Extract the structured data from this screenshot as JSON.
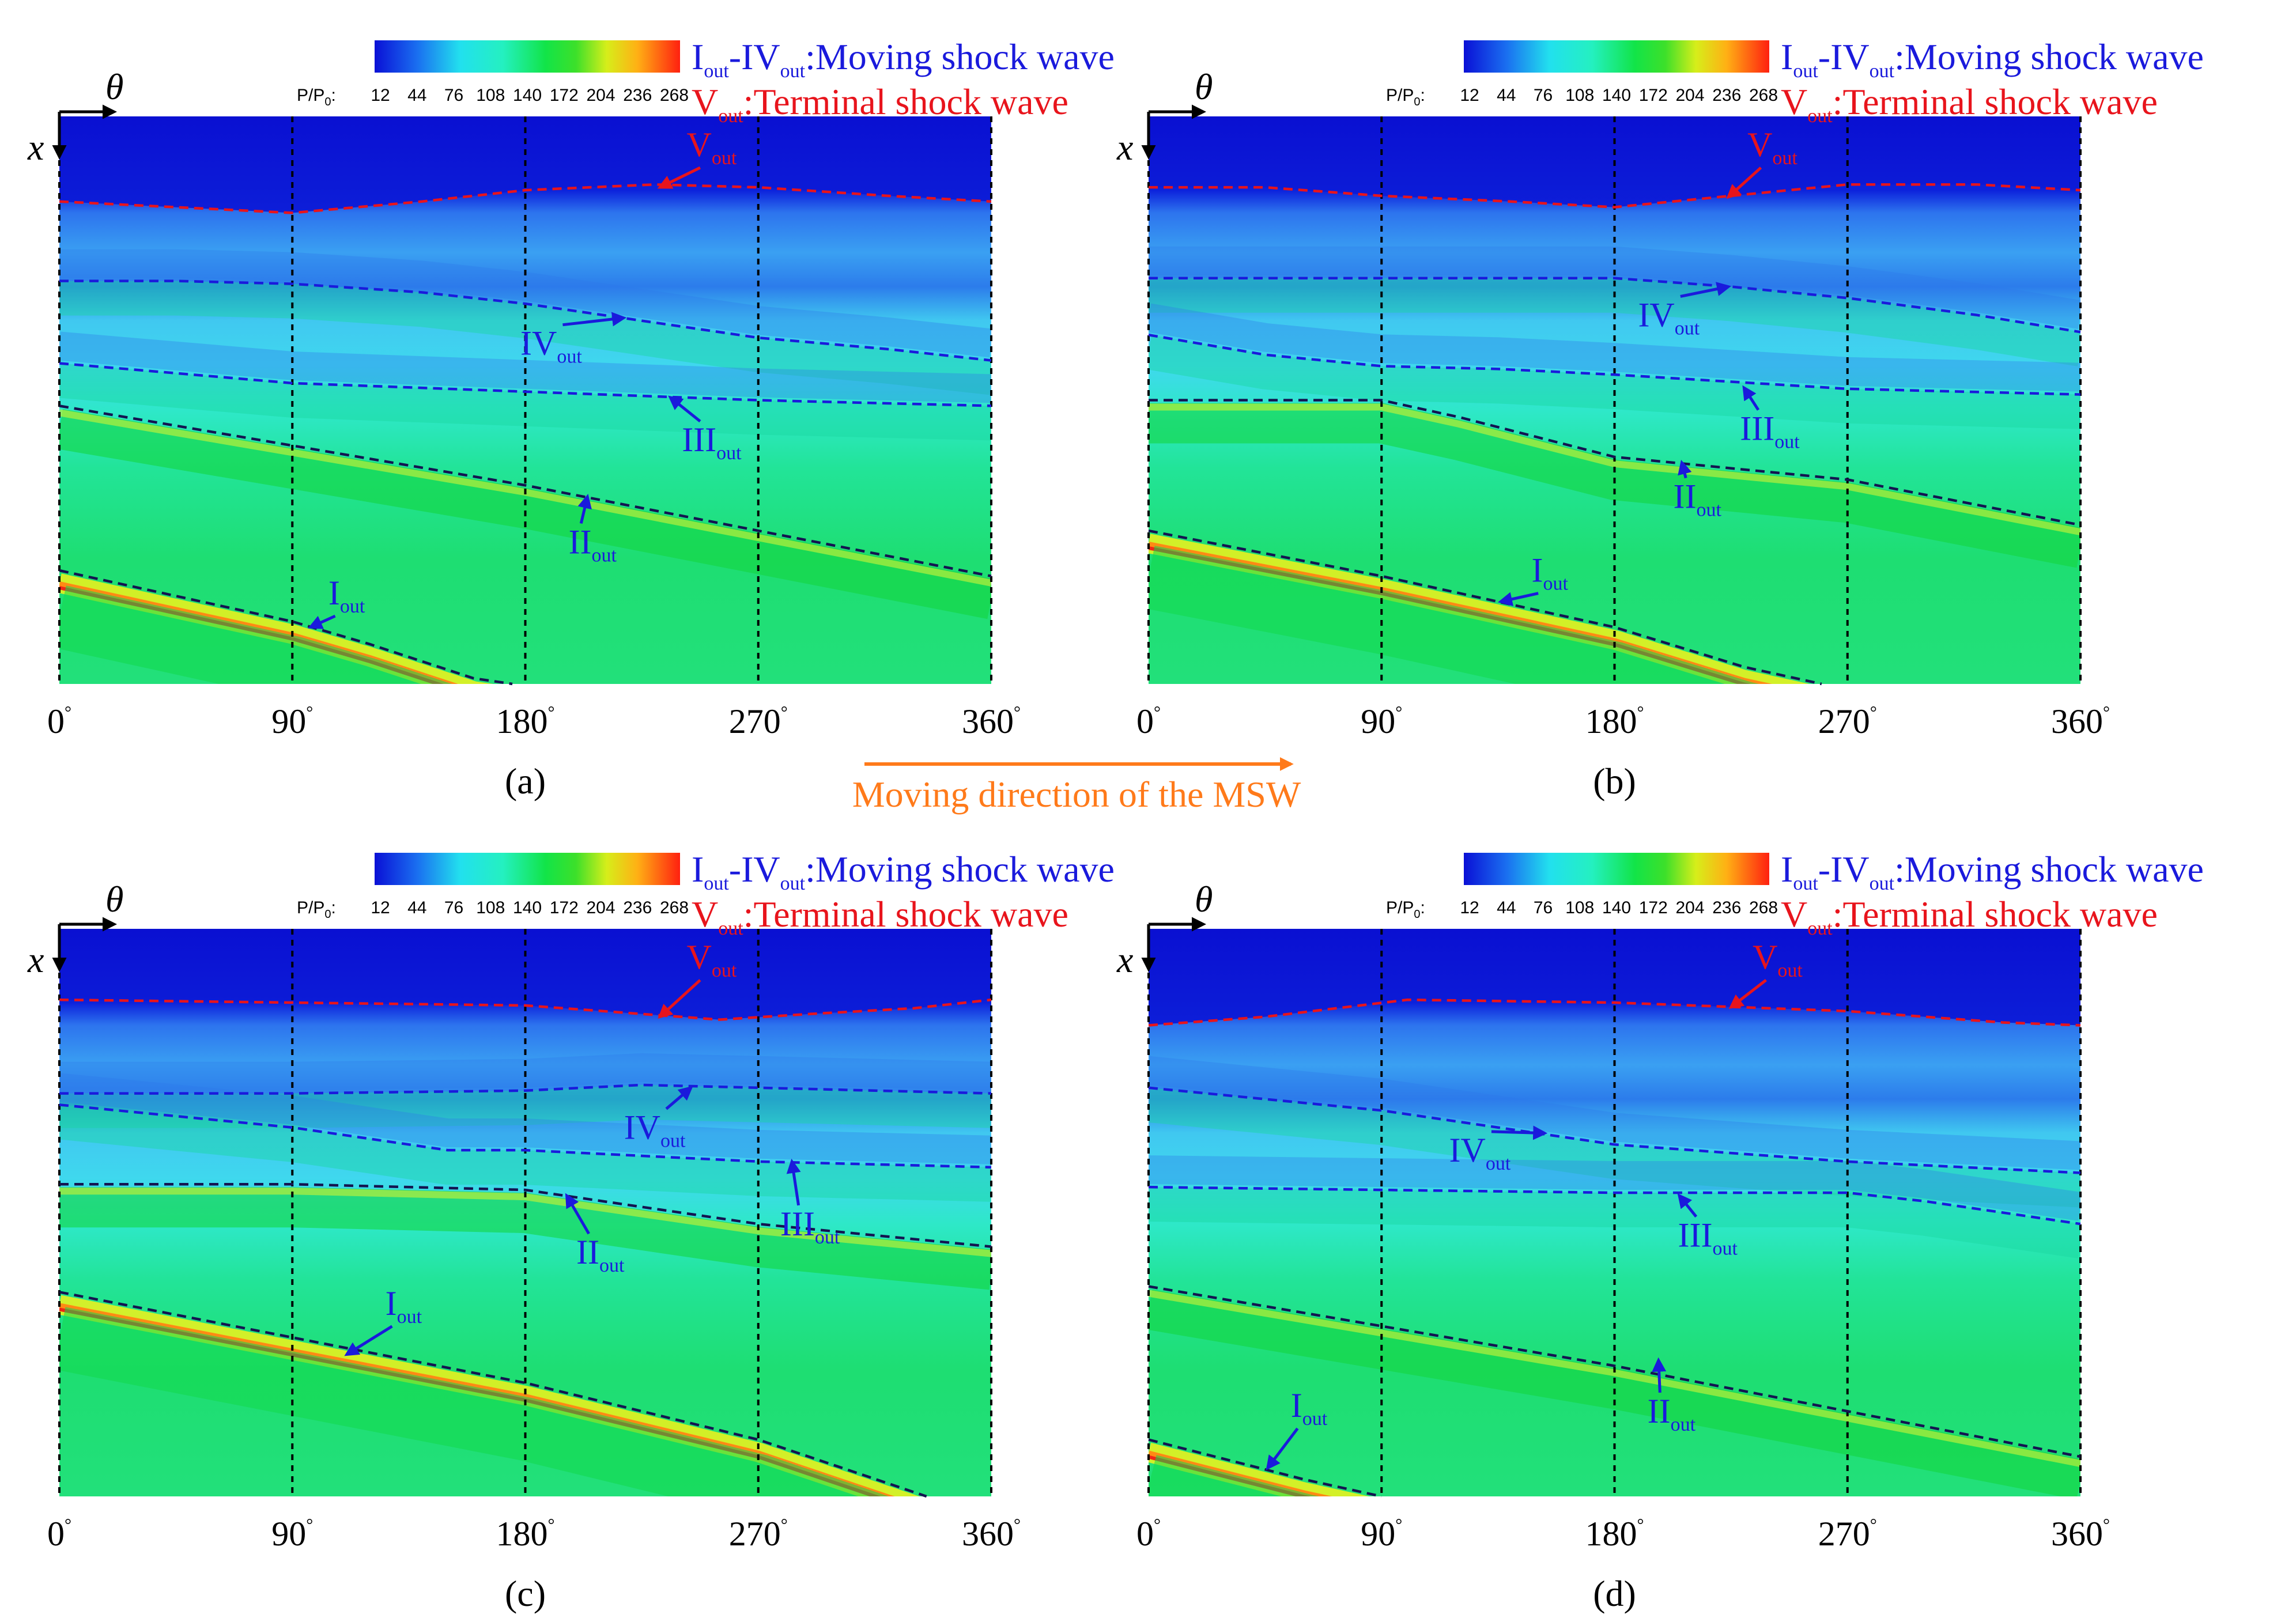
{
  "figure": {
    "arrow_label": "Moving direction of the MSW",
    "colorbar": {
      "label": "P/P",
      "label_subscript": "0",
      "label_suffix": ":",
      "ticks": [
        "12",
        "44",
        "76",
        "108",
        "140",
        "172",
        "204",
        "236",
        "268"
      ],
      "range": [
        12,
        268
      ]
    },
    "legend": {
      "moving": {
        "roman_a": "I",
        "sub": "out",
        "dash": "-",
        "roman_b": "IV",
        "text": ":Moving shock wave"
      },
      "terminal": {
        "roman": "V",
        "sub": "out",
        "text": ":Terminal shock wave"
      }
    },
    "axis": {
      "theta_label": "θ",
      "x_label": "x"
    },
    "colors": {
      "moving": "#1a1adc",
      "terminal": "#e8141c",
      "arrow": "#ff7a1a",
      "grid": "#000000"
    }
  },
  "chart_data": [
    {
      "type": "heatmap",
      "panel_label": "(a)",
      "xlabel": "θ",
      "ylabel": "x",
      "xlim": [
        0,
        360
      ],
      "ylim": [
        0,
        1
      ],
      "x_ticks": [
        0,
        90,
        180,
        270,
        360
      ],
      "tick_suffix": "°",
      "grid_theta": [
        90,
        180,
        270
      ],
      "shocks": [
        {
          "name": "V",
          "sub": "out",
          "kind": "terminal",
          "theta": [
            0,
            45,
            90,
            140,
            180,
            230,
            270,
            320,
            360
          ],
          "x": [
            0.15,
            0.16,
            0.17,
            0.15,
            0.13,
            0.12,
            0.125,
            0.14,
            0.15
          ]
        },
        {
          "name": "IV",
          "sub": "out",
          "kind": "moving",
          "theta": [
            0,
            45,
            90,
            140,
            180,
            225,
            270,
            320,
            360
          ],
          "x": [
            0.29,
            0.29,
            0.295,
            0.31,
            0.33,
            0.36,
            0.39,
            0.41,
            0.43
          ]
        },
        {
          "name": "III",
          "sub": "out",
          "kind": "moving",
          "theta": [
            0,
            90,
            180,
            270,
            360
          ],
          "x": [
            0.435,
            0.47,
            0.485,
            0.5,
            0.51
          ]
        },
        {
          "name": "II",
          "sub": "out",
          "kind": "moving",
          "theta": [
            0,
            90,
            180,
            270,
            360
          ],
          "x": [
            0.51,
            0.58,
            0.65,
            0.73,
            0.81
          ]
        },
        {
          "name": "I",
          "sub": "out",
          "kind": "moving",
          "theta": [
            0,
            60,
            90,
            120,
            160,
            175
          ],
          "x": [
            0.8,
            0.86,
            0.89,
            0.93,
            0.99,
            1.0
          ]
        }
      ],
      "annotations": [
        {
          "text": "V",
          "sub": "out",
          "target": "V",
          "label_theta": 252,
          "label_x": 0.07,
          "tip_theta": 232,
          "tip_x": 0.125
        },
        {
          "text": "IV",
          "sub": "out",
          "target": "IV",
          "label_theta": 190,
          "label_x": 0.42,
          "tip_theta": 218,
          "tip_x": 0.355
        },
        {
          "text": "III",
          "sub": "out",
          "target": "III",
          "label_theta": 252,
          "label_x": 0.59,
          "tip_theta": 236,
          "tip_x": 0.495
        },
        {
          "text": "II",
          "sub": "out",
          "target": "II",
          "label_theta": 206,
          "label_x": 0.77,
          "tip_theta": 204,
          "tip_x": 0.67
        },
        {
          "text": "I",
          "sub": "out",
          "target": "I",
          "label_theta": 111,
          "label_x": 0.86,
          "tip_theta": 97,
          "tip_x": 0.9
        }
      ]
    },
    {
      "type": "heatmap",
      "panel_label": "(b)",
      "xlabel": "θ",
      "ylabel": "x",
      "xlim": [
        0,
        360
      ],
      "ylim": [
        0,
        1
      ],
      "x_ticks": [
        0,
        90,
        180,
        270,
        360
      ],
      "tick_suffix": "°",
      "grid_theta": [
        90,
        180,
        270
      ],
      "shocks": [
        {
          "name": "V",
          "sub": "out",
          "kind": "terminal",
          "theta": [
            0,
            45,
            90,
            140,
            180,
            225,
            270,
            320,
            360
          ],
          "x": [
            0.125,
            0.125,
            0.14,
            0.15,
            0.16,
            0.14,
            0.12,
            0.12,
            0.13
          ]
        },
        {
          "name": "IV",
          "sub": "out",
          "kind": "moving",
          "theta": [
            0,
            90,
            180,
            225,
            270,
            320,
            360
          ],
          "x": [
            0.285,
            0.285,
            0.285,
            0.3,
            0.32,
            0.35,
            0.38
          ]
        },
        {
          "name": "III",
          "sub": "out",
          "kind": "moving",
          "theta": [
            0,
            45,
            90,
            135,
            180,
            270,
            360
          ],
          "x": [
            0.385,
            0.42,
            0.44,
            0.445,
            0.455,
            0.48,
            0.49
          ]
        },
        {
          "name": "II",
          "sub": "out",
          "kind": "moving",
          "theta": [
            0,
            90,
            120,
            180,
            270,
            360
          ],
          "x": [
            0.5,
            0.5,
            0.53,
            0.6,
            0.64,
            0.72
          ]
        },
        {
          "name": "I",
          "sub": "out",
          "kind": "moving",
          "theta": [
            0,
            90,
            180,
            230,
            260
          ],
          "x": [
            0.73,
            0.81,
            0.9,
            0.97,
            1.0
          ]
        }
      ],
      "annotations": [
        {
          "text": "V",
          "sub": "out",
          "target": "V",
          "label_theta": 241,
          "label_x": 0.07,
          "tip_theta": 224,
          "tip_x": 0.142
        },
        {
          "text": "IV",
          "sub": "out",
          "target": "IV",
          "label_theta": 201,
          "label_x": 0.37,
          "tip_theta": 224,
          "tip_x": 0.3
        },
        {
          "text": "III",
          "sub": "out",
          "target": "III",
          "label_theta": 240,
          "label_x": 0.57,
          "tip_theta": 230,
          "tip_x": 0.478
        },
        {
          "text": "II",
          "sub": "out",
          "target": "II",
          "label_theta": 212,
          "label_x": 0.69,
          "tip_theta": 206,
          "tip_x": 0.61
        },
        {
          "text": "I",
          "sub": "out",
          "target": "I",
          "label_theta": 155,
          "label_x": 0.82,
          "tip_theta": 136,
          "tip_x": 0.855
        }
      ]
    },
    {
      "type": "heatmap",
      "panel_label": "(c)",
      "xlabel": "θ",
      "ylabel": "x",
      "xlim": [
        0,
        360
      ],
      "ylim": [
        0,
        1
      ],
      "x_ticks": [
        0,
        90,
        180,
        270,
        360
      ],
      "tick_suffix": "°",
      "grid_theta": [
        90,
        180,
        270
      ],
      "shocks": [
        {
          "name": "V",
          "sub": "out",
          "kind": "terminal",
          "theta": [
            0,
            90,
            180,
            225,
            255,
            290,
            330,
            360
          ],
          "x": [
            0.125,
            0.13,
            0.135,
            0.15,
            0.16,
            0.15,
            0.14,
            0.125
          ]
        },
        {
          "name": "IV",
          "sub": "out",
          "kind": "moving",
          "theta": [
            0,
            90,
            180,
            225,
            270,
            360
          ],
          "x": [
            0.29,
            0.29,
            0.285,
            0.275,
            0.28,
            0.29
          ]
        },
        {
          "name": "III",
          "sub": "out",
          "kind": "moving",
          "theta": [
            0,
            90,
            150,
            180,
            270,
            360
          ],
          "x": [
            0.31,
            0.35,
            0.39,
            0.39,
            0.41,
            0.42
          ]
        },
        {
          "name": "II",
          "sub": "out",
          "kind": "moving",
          "theta": [
            0,
            90,
            180,
            225,
            270,
            360
          ],
          "x": [
            0.45,
            0.45,
            0.46,
            0.49,
            0.52,
            0.56
          ]
        },
        {
          "name": "I",
          "sub": "out",
          "kind": "moving",
          "theta": [
            0,
            90,
            180,
            270,
            335
          ],
          "x": [
            0.64,
            0.72,
            0.8,
            0.9,
            1.0
          ]
        }
      ],
      "annotations": [
        {
          "text": "V",
          "sub": "out",
          "target": "V",
          "label_theta": 252,
          "label_x": 0.07,
          "tip_theta": 232,
          "tip_x": 0.155
        },
        {
          "text": "IV",
          "sub": "out",
          "target": "IV",
          "label_theta": 230,
          "label_x": 0.37,
          "tip_theta": 244,
          "tip_x": 0.28
        },
        {
          "text": "III",
          "sub": "out",
          "target": "III",
          "label_theta": 290,
          "label_x": 0.54,
          "tip_theta": 283,
          "tip_x": 0.41
        },
        {
          "text": "II",
          "sub": "out",
          "target": "II",
          "label_theta": 209,
          "label_x": 0.59,
          "tip_theta": 196,
          "tip_x": 0.47
        },
        {
          "text": "I",
          "sub": "out",
          "target": "I",
          "label_theta": 133,
          "label_x": 0.68,
          "tip_theta": 111,
          "tip_x": 0.75
        }
      ]
    },
    {
      "type": "heatmap",
      "panel_label": "(d)",
      "xlabel": "θ",
      "ylabel": "x",
      "xlim": [
        0,
        360
      ],
      "ylim": [
        0,
        1
      ],
      "x_ticks": [
        0,
        90,
        180,
        270,
        360
      ],
      "tick_suffix": "°",
      "grid_theta": [
        90,
        180,
        270
      ],
      "shocks": [
        {
          "name": "V",
          "sub": "out",
          "kind": "terminal",
          "theta": [
            0,
            45,
            100,
            180,
            270,
            330,
            360
          ],
          "x": [
            0.17,
            0.155,
            0.125,
            0.13,
            0.145,
            0.165,
            0.17
          ]
        },
        {
          "name": "IV",
          "sub": "out",
          "kind": "moving",
          "theta": [
            0,
            45,
            90,
            135,
            180,
            270,
            360
          ],
          "x": [
            0.28,
            0.3,
            0.32,
            0.35,
            0.38,
            0.41,
            0.43
          ]
        },
        {
          "name": "III",
          "sub": "out",
          "kind": "moving",
          "theta": [
            0,
            90,
            180,
            270,
            300,
            330,
            360
          ],
          "x": [
            0.455,
            0.46,
            0.465,
            0.465,
            0.48,
            0.5,
            0.52
          ]
        },
        {
          "name": "II",
          "sub": "out",
          "kind": "moving",
          "theta": [
            0,
            90,
            180,
            270,
            360
          ],
          "x": [
            0.63,
            0.7,
            0.77,
            0.85,
            0.93
          ]
        },
        {
          "name": "I",
          "sub": "out",
          "kind": "moving",
          "theta": [
            0,
            60,
            90
          ],
          "x": [
            0.9,
            0.97,
            1.0
          ]
        }
      ],
      "annotations": [
        {
          "text": "V",
          "sub": "out",
          "target": "V",
          "label_theta": 243,
          "label_x": 0.07,
          "tip_theta": 225,
          "tip_x": 0.138
        },
        {
          "text": "IV",
          "sub": "out",
          "target": "IV",
          "label_theta": 128,
          "label_x": 0.41,
          "tip_theta": 153,
          "tip_x": 0.36
        },
        {
          "text": "III",
          "sub": "out",
          "target": "III",
          "label_theta": 216,
          "label_x": 0.56,
          "tip_theta": 205,
          "tip_x": 0.47
        },
        {
          "text": "II",
          "sub": "out",
          "target": "II",
          "label_theta": 202,
          "label_x": 0.87,
          "tip_theta": 197,
          "tip_x": 0.76
        },
        {
          "text": "I",
          "sub": "out",
          "target": "I",
          "label_theta": 62,
          "label_x": 0.86,
          "tip_theta": 46,
          "tip_x": 0.95
        }
      ]
    }
  ]
}
